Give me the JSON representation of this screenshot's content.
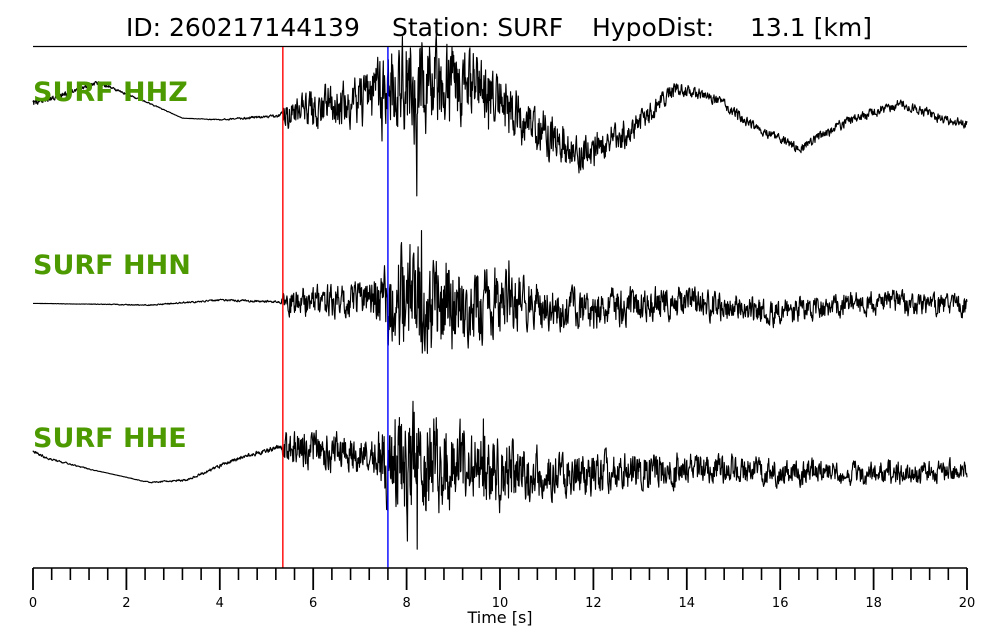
{
  "header": {
    "id_text": "ID: 260217144139",
    "station_text": "Station: SURF",
    "hypodist_label": "HypoDist:",
    "hypodist_value": "13.1 [km]"
  },
  "colors": {
    "channel_label": "#4c9a00",
    "p_pick": "#ff0000",
    "s_pick": "#0000ff",
    "trace": "#000000"
  },
  "chart_data": {
    "type": "line",
    "xlabel": "Time [s]",
    "xlim": [
      0,
      20
    ],
    "major_ticks": [
      0,
      2,
      4,
      6,
      8,
      10,
      12,
      14,
      16,
      18,
      20
    ],
    "minor_tick_step": 0.4,
    "picks": [
      {
        "phase": "P",
        "time": 5.35,
        "color": "#ff0000"
      },
      {
        "phase": "S",
        "time": 7.6,
        "color": "#0000ff"
      }
    ],
    "traces": [
      {
        "name": "SURF HHZ",
        "envelope": [
          [
            0,
            -0.05
          ],
          [
            5.3,
            0.03
          ],
          [
            5.4,
            0.25
          ],
          [
            7.0,
            0.4
          ],
          [
            7.5,
            0.6
          ],
          [
            8.2,
            0.95
          ],
          [
            8.5,
            0.75
          ],
          [
            9.5,
            0.55
          ],
          [
            10.5,
            0.42
          ],
          [
            12.0,
            0.3
          ],
          [
            14.0,
            0.1
          ],
          [
            16.0,
            0.08
          ],
          [
            20.0,
            0.08
          ]
        ],
        "long_period": [
          [
            0,
            0.3
          ],
          [
            0.5,
            0.38
          ],
          [
            1.4,
            0.55
          ],
          [
            2.5,
            0.3
          ],
          [
            3.2,
            0.12
          ],
          [
            4.0,
            0.1
          ],
          [
            5.3,
            0.15
          ],
          [
            6.8,
            0.3
          ],
          [
            8.0,
            0.55
          ],
          [
            9.5,
            0.45
          ],
          [
            11.0,
            -0.1
          ],
          [
            11.8,
            -0.3
          ],
          [
            12.8,
            -0.05
          ],
          [
            13.8,
            0.5
          ],
          [
            14.6,
            0.35
          ],
          [
            15.5,
            0.0
          ],
          [
            16.4,
            -0.25
          ],
          [
            17.5,
            0.1
          ],
          [
            18.6,
            0.3
          ],
          [
            19.5,
            0.1
          ],
          [
            20.0,
            0.05
          ]
        ]
      },
      {
        "name": "SURF HHN",
        "envelope": [
          [
            0,
            0.0
          ],
          [
            5.3,
            0.02
          ],
          [
            5.4,
            0.22
          ],
          [
            7.2,
            0.3
          ],
          [
            7.8,
            0.85
          ],
          [
            8.3,
            1.0
          ],
          [
            8.7,
            0.85
          ],
          [
            9.8,
            0.6
          ],
          [
            11.0,
            0.35
          ],
          [
            13.5,
            0.28
          ],
          [
            15.0,
            0.22
          ],
          [
            17.0,
            0.2
          ],
          [
            20.0,
            0.18
          ]
        ],
        "long_period": [
          [
            0,
            0.02
          ],
          [
            2.5,
            0.0
          ],
          [
            4.0,
            0.06
          ],
          [
            5.3,
            0.04
          ],
          [
            8.0,
            0.05
          ],
          [
            12.0,
            -0.05
          ],
          [
            14.0,
            0.03
          ],
          [
            16.0,
            -0.1
          ],
          [
            18.0,
            0.04
          ],
          [
            20.0,
            -0.02
          ]
        ]
      },
      {
        "name": "SURF HHE",
        "envelope": [
          [
            0,
            -0.02
          ],
          [
            5.3,
            0.04
          ],
          [
            5.4,
            0.28
          ],
          [
            7.3,
            0.3
          ],
          [
            7.8,
            0.95
          ],
          [
            8.2,
            1.0
          ],
          [
            8.7,
            0.7
          ],
          [
            9.8,
            0.55
          ],
          [
            11.0,
            0.35
          ],
          [
            13.5,
            0.25
          ],
          [
            16.0,
            0.2
          ],
          [
            20.0,
            0.16
          ]
        ],
        "long_period": [
          [
            0,
            0.3
          ],
          [
            0.3,
            0.22
          ],
          [
            1.2,
            0.1
          ],
          [
            2.5,
            -0.05
          ],
          [
            3.3,
            -0.02
          ],
          [
            4.3,
            0.2
          ],
          [
            5.3,
            0.35
          ],
          [
            6.5,
            0.3
          ],
          [
            8.0,
            0.15
          ],
          [
            10.0,
            0.05
          ],
          [
            12.0,
            0.05
          ],
          [
            14.0,
            0.1
          ],
          [
            17.0,
            0.05
          ],
          [
            20.0,
            0.08
          ]
        ]
      }
    ]
  }
}
